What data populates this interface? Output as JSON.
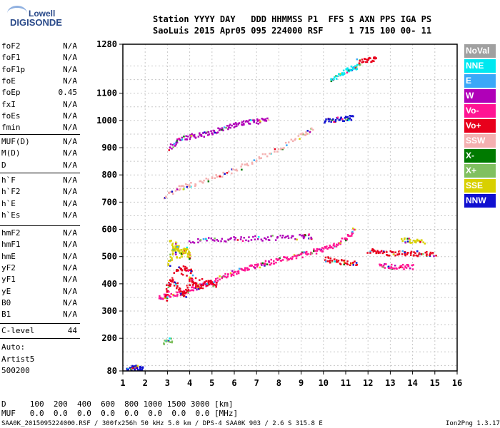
{
  "logo": {
    "top": "Lowell",
    "bottom": "DIGISONDE"
  },
  "header": {
    "row1": "Station YYYY DAY   DDD HHMMSS P1  FFS S AXN PPS IGA PS",
    "row2": "SaoLuis 2015 Apr05 095 224000 RSF     1 715 100 00- 11"
  },
  "params_group1": [
    {
      "name": "foF2",
      "value": "N/A"
    },
    {
      "name": "foF1",
      "value": "N/A"
    },
    {
      "name": "foF1p",
      "value": "N/A"
    },
    {
      "name": "foE",
      "value": "N/A"
    },
    {
      "name": "foEp",
      "value": "0.45"
    },
    {
      "name": "fxI",
      "value": "N/A"
    },
    {
      "name": "foEs",
      "value": "N/A"
    },
    {
      "name": "fmin",
      "value": "N/A"
    }
  ],
  "params_group2": [
    {
      "name": "MUF(D)",
      "value": "N/A"
    },
    {
      "name": "M(D)",
      "value": "N/A"
    },
    {
      "name": "D",
      "value": "N/A"
    }
  ],
  "params_group3": [
    {
      "name": "h`F",
      "value": "N/A"
    },
    {
      "name": "h`F2",
      "value": "N/A"
    },
    {
      "name": "h`E",
      "value": "N/A"
    },
    {
      "name": "h`Es",
      "value": "N/A"
    }
  ],
  "params_group4": [
    {
      "name": "hmF2",
      "value": "N/A"
    },
    {
      "name": "hmF1",
      "value": "N/A"
    },
    {
      "name": "hmE",
      "value": "N/A"
    },
    {
      "name": "yF2",
      "value": "N/A"
    },
    {
      "name": "yF1",
      "value": "N/A"
    },
    {
      "name": "yE",
      "value": "N/A"
    },
    {
      "name": "B0",
      "value": "N/A"
    },
    {
      "name": "B1",
      "value": "N/A"
    }
  ],
  "params_group5": [
    {
      "name": "C-level",
      "value": "44"
    }
  ],
  "auto": {
    "line1": "Auto:",
    "line2": "Artist5",
    "line3": "500200"
  },
  "legend": [
    {
      "label": "NoVal",
      "color": "#a0a0a0"
    },
    {
      "label": "NNE",
      "color": "#00e8f0"
    },
    {
      "label": "E",
      "color": "#3aa8f8"
    },
    {
      "label": "W",
      "color": "#b000b8"
    },
    {
      "label": "Vo-",
      "color": "#ff1493"
    },
    {
      "label": "Vo+",
      "color": "#e8001c"
    },
    {
      "label": "SSW",
      "color": "#f4b0b0"
    },
    {
      "label": "X-",
      "color": "#007a00"
    },
    {
      "label": "X+",
      "color": "#80c060"
    },
    {
      "label": "SSE",
      "color": "#d8d000"
    },
    {
      "label": "NNW",
      "color": "#1010d0"
    }
  ],
  "footer": {
    "d_row": "D     100  200  400  600  800 1000 1500 3000 [km]",
    "muf_row": "MUF   0.0  0.0  0.0  0.0  0.0  0.0  0.0  0.0 [MHz]",
    "file_row": "SAA0K_2015095224000.RSF / 300fx256h 50 kHz 5.0 km / DPS-4 SAA0K 903 / 2.6 S 315.8 E",
    "version": "Ion2Png 1.3.17"
  },
  "chart_data": {
    "type": "scatter",
    "xlim": [
      1,
      16
    ],
    "ylim": [
      80,
      1280
    ],
    "xticks": [
      1,
      2,
      3,
      4,
      5,
      6,
      7,
      8,
      9,
      10,
      11,
      12,
      13,
      14,
      15,
      16
    ],
    "yticks": [
      80,
      200,
      300,
      400,
      500,
      600,
      700,
      800,
      900,
      1000,
      1100,
      1280
    ],
    "grid": true,
    "traces": [
      {
        "name": "F-layer main trace",
        "color_key": "Vo-",
        "points": [
          [
            2.6,
            350
          ],
          [
            3.0,
            360
          ],
          [
            3.5,
            370
          ],
          [
            4.0,
            380
          ],
          [
            4.5,
            395
          ],
          [
            5.0,
            410
          ],
          [
            5.5,
            430
          ],
          [
            6.0,
            445
          ],
          [
            6.5,
            460
          ],
          [
            7.0,
            470
          ],
          [
            7.5,
            480
          ],
          [
            8.0,
            490
          ],
          [
            8.5,
            500
          ],
          [
            9.0,
            510
          ],
          [
            9.5,
            520
          ],
          [
            10.0,
            530
          ],
          [
            10.5,
            545
          ],
          [
            11.0,
            570
          ],
          [
            11.4,
            610
          ]
        ]
      },
      {
        "name": "Spread F blob",
        "color_key": "Vo+",
        "points": [
          [
            2.9,
            340
          ],
          [
            3.0,
            400
          ],
          [
            3.2,
            420
          ],
          [
            3.5,
            380
          ],
          [
            3.8,
            360
          ],
          [
            4.0,
            420
          ],
          [
            4.2,
            400
          ],
          [
            4.5,
            390
          ],
          [
            4.8,
            410
          ],
          [
            5.2,
            400
          ],
          [
            3.3,
            450
          ],
          [
            3.7,
            460
          ],
          [
            4.1,
            445
          ]
        ]
      },
      {
        "name": "Upper blob",
        "color_key": "SSE",
        "points": [
          [
            3.0,
            470
          ],
          [
            3.2,
            520
          ],
          [
            3.4,
            540
          ],
          [
            3.6,
            510
          ],
          [
            3.8,
            530
          ],
          [
            4.0,
            500
          ],
          [
            3.1,
            560
          ],
          [
            3.5,
            490
          ]
        ]
      },
      {
        "name": "Horizontal trace 570",
        "color_key": "W",
        "points": [
          [
            4.0,
            560
          ],
          [
            5.0,
            565
          ],
          [
            6.0,
            568
          ],
          [
            7.0,
            570
          ],
          [
            8.0,
            572
          ],
          [
            9.0,
            575
          ],
          [
            9.5,
            577
          ]
        ]
      },
      {
        "name": "Second hop",
        "color_key": "SSW",
        "points": [
          [
            2.8,
            720
          ],
          [
            3.5,
            755
          ],
          [
            4.0,
            765
          ],
          [
            5.0,
            790
          ],
          [
            6.0,
            820
          ],
          [
            7.0,
            860
          ],
          [
            8.0,
            900
          ],
          [
            9.0,
            950
          ],
          [
            9.5,
            975
          ]
        ]
      },
      {
        "name": "Second hop upper",
        "color_key": "W",
        "points": [
          [
            3.0,
            900
          ],
          [
            3.5,
            930
          ],
          [
            4.0,
            945
          ],
          [
            4.5,
            950
          ],
          [
            5.0,
            960
          ],
          [
            5.5,
            975
          ],
          [
            6.0,
            985
          ],
          [
            6.5,
            995
          ],
          [
            7.0,
            1000
          ],
          [
            7.5,
            1010
          ]
        ]
      },
      {
        "name": "Top trace",
        "color_key": "NNE",
        "points": [
          [
            10.3,
            1150
          ],
          [
            10.6,
            1170
          ],
          [
            11.0,
            1185
          ],
          [
            11.3,
            1195
          ],
          [
            11.6,
            1205
          ]
        ]
      },
      {
        "name": "Top trace red",
        "color_key": "Vo+",
        "points": [
          [
            11.5,
            1220
          ],
          [
            12.0,
            1225
          ],
          [
            12.3,
            1230
          ]
        ]
      },
      {
        "name": "Mid trace 1000",
        "color_key": "NNW",
        "points": [
          [
            10.0,
            1000
          ],
          [
            10.5,
            1005
          ],
          [
            11.0,
            1010
          ],
          [
            11.3,
            1015
          ]
        ]
      },
      {
        "name": "Lower branch 480",
        "color_key": "Vo+",
        "points": [
          [
            10.0,
            495
          ],
          [
            10.5,
            485
          ],
          [
            11.0,
            480
          ],
          [
            11.5,
            478
          ]
        ]
      },
      {
        "name": "Right cluster 520",
        "color_key": "Vo+",
        "points": [
          [
            12.0,
            525
          ],
          [
            12.5,
            520
          ],
          [
            13.0,
            515
          ],
          [
            13.5,
            515
          ],
          [
            14.0,
            515
          ],
          [
            14.5,
            512
          ],
          [
            15.0,
            510
          ]
        ]
      },
      {
        "name": "Right cluster 560",
        "color_key": "SSE",
        "points": [
          [
            13.5,
            565
          ],
          [
            14.0,
            560
          ],
          [
            14.5,
            555
          ]
        ]
      },
      {
        "name": "Right cluster 470",
        "color_key": "Vo-",
        "points": [
          [
            12.5,
            470
          ],
          [
            13.0,
            468
          ],
          [
            13.5,
            465
          ],
          [
            14.0,
            465
          ]
        ]
      },
      {
        "name": "Low E",
        "color_key": "NNW",
        "points": [
          [
            1.1,
            85
          ],
          [
            1.3,
            88
          ],
          [
            1.5,
            95
          ],
          [
            1.7,
            92
          ],
          [
            1.9,
            90
          ]
        ]
      },
      {
        "name": "Low greens",
        "color_key": "X+",
        "points": [
          [
            2.8,
            190
          ],
          [
            3.2,
            195
          ]
        ]
      }
    ]
  }
}
